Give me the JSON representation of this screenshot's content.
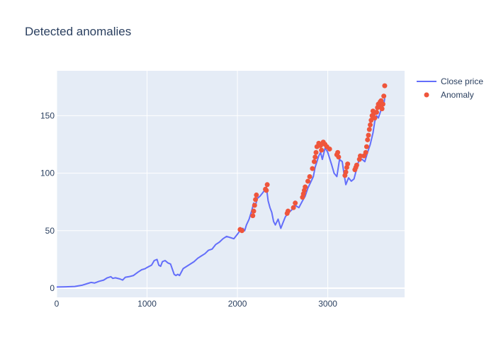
{
  "chart_data": {
    "type": "line",
    "title": "Detected anomalies",
    "xlabel": "",
    "ylabel": "",
    "xlim": [
      0,
      3850
    ],
    "ylim": [
      -8,
      189
    ],
    "x_ticks": [
      0,
      1000,
      2000,
      3000
    ],
    "x_tick_labels": [
      "0",
      "1000",
      "2000",
      "3000"
    ],
    "y_ticks": [
      0,
      50,
      100,
      150
    ],
    "y_tick_labels": [
      "0",
      "50",
      "100",
      "150"
    ],
    "grid": true,
    "legend_position": "top-right",
    "colors": {
      "plot_bg": "#e5ecf6",
      "grid": "#ffffff",
      "line": "#636efa",
      "anomaly": "#ef553b",
      "text": "#2a3f5f"
    },
    "series": [
      {
        "name": "Close price",
        "mode": "line",
        "x": [
          0,
          100,
          200,
          280,
          340,
          380,
          420,
          470,
          520,
          560,
          600,
          620,
          650,
          700,
          730,
          760,
          800,
          850,
          900,
          940,
          980,
          1000,
          1050,
          1080,
          1110,
          1130,
          1150,
          1170,
          1200,
          1230,
          1260,
          1300,
          1320,
          1340,
          1360,
          1400,
          1440,
          1480,
          1520,
          1560,
          1600,
          1640,
          1680,
          1720,
          1760,
          1800,
          1840,
          1880,
          1920,
          1960,
          2000,
          2020,
          2040,
          2060,
          2080,
          2100,
          2130,
          2160,
          2180,
          2200,
          2220,
          2250,
          2280,
          2300,
          2320,
          2340,
          2360,
          2380,
          2400,
          2420,
          2450,
          2480,
          2500,
          2530,
          2560,
          2600,
          2640,
          2680,
          2720,
          2750,
          2780,
          2810,
          2840,
          2860,
          2880,
          2900,
          2920,
          2940,
          2970,
          3000,
          3040,
          3070,
          3100,
          3130,
          3160,
          3180,
          3200,
          3230,
          3260,
          3290,
          3320,
          3350,
          3380,
          3410,
          3440,
          3470,
          3500,
          3520,
          3540,
          3560,
          3590,
          3620,
          3630
        ],
        "y": [
          1,
          1.2,
          1.5,
          2.5,
          4,
          5,
          4.5,
          6,
          7,
          9,
          10,
          8.5,
          9,
          8,
          7,
          9.5,
          10,
          11,
          14,
          16,
          17,
          18,
          20,
          24,
          25,
          20,
          19,
          23,
          24,
          22,
          21,
          12,
          11,
          12,
          11,
          17,
          19,
          21,
          23,
          26,
          28,
          30,
          33,
          34,
          38,
          40,
          43,
          45,
          44,
          43,
          47,
          49,
          51,
          52,
          50,
          55,
          60,
          68,
          74,
          72,
          78,
          80,
          83,
          85,
          88,
          76,
          70,
          66,
          58,
          55,
          60,
          52,
          56,
          62,
          65,
          68,
          72,
          70,
          76,
          80,
          87,
          92,
          97,
          105,
          110,
          115,
          118,
          112,
          122,
          118,
          108,
          100,
          97,
          112,
          110,
          99,
          90,
          96,
          93,
          95,
          104,
          113,
          112,
          110,
          118,
          125,
          135,
          145,
          150,
          148,
          155,
          160,
          165
        ]
      },
      {
        "name": "Anomaly",
        "mode": "markers",
        "x": [
          2030,
          2050,
          2170,
          2180,
          2190,
          2200,
          2210,
          2310,
          2320,
          2330,
          2550,
          2560,
          2620,
          2640,
          2720,
          2730,
          2740,
          2750,
          2780,
          2800,
          2830,
          2850,
          2860,
          2870,
          2880,
          2900,
          2920,
          2930,
          2950,
          2970,
          2990,
          3020,
          3100,
          3110,
          3120,
          3190,
          3200,
          3210,
          3220,
          3300,
          3310,
          3320,
          3350,
          3360,
          3400,
          3420,
          3430,
          3440,
          3450,
          3460,
          3470,
          3480,
          3490,
          3500,
          3510,
          3520,
          3540,
          3550,
          3560,
          3570,
          3580,
          3590,
          3600,
          3610,
          3620,
          3630
        ],
        "y": [
          51,
          50,
          63,
          67,
          72,
          77,
          81,
          86,
          85,
          90,
          65,
          67,
          70,
          74,
          79,
          82,
          85,
          88,
          93,
          97,
          104,
          110,
          114,
          118,
          123,
          126,
          124,
          120,
          127,
          125,
          123,
          121,
          116,
          118,
          114,
          98,
          101,
          105,
          108,
          103,
          105,
          107,
          112,
          115,
          115,
          118,
          123,
          129,
          133,
          138,
          142,
          146,
          150,
          154,
          152,
          148,
          153,
          157,
          160,
          158,
          162,
          163,
          156,
          160,
          167,
          176
        ]
      }
    ]
  }
}
